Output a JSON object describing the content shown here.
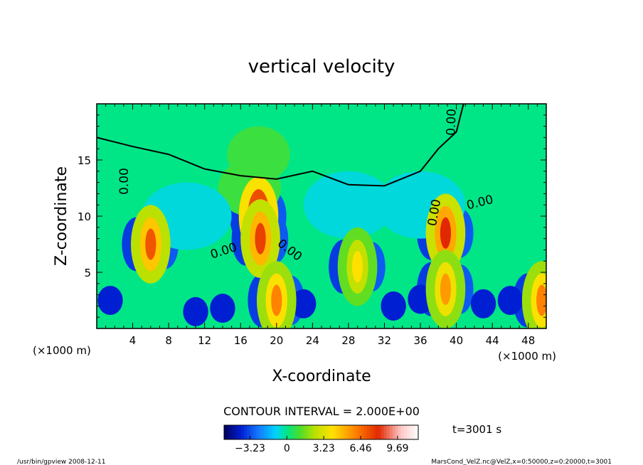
{
  "chart_data": {
    "type": "heatmap",
    "title": "vertical velocity",
    "xlabel": "X-coordinate",
    "ylabel": "Z-coordinate",
    "x_unit_left": "(×1000 m)",
    "x_unit_right": "(×1000 m)",
    "xlim": [
      0,
      50
    ],
    "ylim": [
      0,
      20
    ],
    "x_ticks": [
      4,
      8,
      12,
      16,
      20,
      24,
      28,
      32,
      36,
      40,
      44,
      48
    ],
    "y_ticks": [
      5,
      10,
      15
    ],
    "contour_label": "0.00",
    "contour_interval_text": "CONTOUR INTERVAL = 2.000E+00",
    "time_text": "t=3001 s",
    "colorbar": {
      "range": [
        -5.5,
        11.5
      ],
      "ticks": [
        -3.23,
        0,
        3.23,
        6.46,
        9.69
      ],
      "tick_labels": [
        "−3.23",
        "0",
        "3.23",
        "6.46",
        "9.69"
      ]
    },
    "updrafts": [
      {
        "x": 6.0,
        "z": 7.5,
        "peak": 7.0
      },
      {
        "x": 18.0,
        "z": 10.0,
        "peak": 11.0
      },
      {
        "x": 18.2,
        "z": 8.0,
        "peak": 7.5
      },
      {
        "x": 20.0,
        "z": 2.5,
        "peak": 6.0
      },
      {
        "x": 29.0,
        "z": 5.5,
        "peak": 4.0
      },
      {
        "x": 38.8,
        "z": 8.5,
        "peak": 8.0
      },
      {
        "x": 38.8,
        "z": 3.5,
        "peak": 5.5
      },
      {
        "x": 49.5,
        "z": 2.5,
        "peak": 6.0
      }
    ],
    "zero_contour_top": [
      [
        0,
        17.0
      ],
      [
        4,
        16.2
      ],
      [
        8,
        15.5
      ],
      [
        12,
        14.2
      ],
      [
        16,
        13.6
      ],
      [
        20,
        13.3
      ],
      [
        24,
        14.0
      ],
      [
        28,
        12.8
      ],
      [
        32,
        12.7
      ],
      [
        36,
        14.0
      ],
      [
        38,
        16.0
      ],
      [
        40,
        17.5
      ],
      [
        40.8,
        20
      ]
    ]
  },
  "footer": {
    "left": "/usr/bin/gpview   2008-12-11",
    "right": "MarsCond_VelZ.nc@VelZ,x=0:50000,z=0:20000,t=3001"
  }
}
